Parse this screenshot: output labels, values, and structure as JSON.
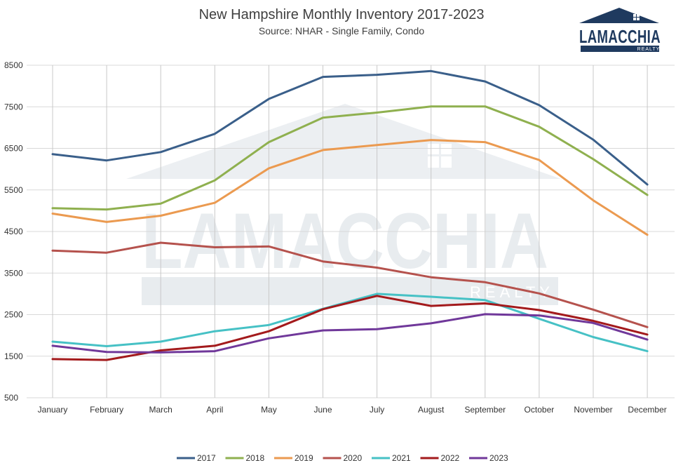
{
  "logo": {
    "name": "LAMACCHIA",
    "sub": "REALTY"
  },
  "chart_data": {
    "type": "line",
    "title": "New Hampshire Monthly Inventory 2017-2023",
    "subtitle": "Source: NHAR - Single Family, Condo",
    "xlabel": "",
    "ylabel": "",
    "categories": [
      "January",
      "February",
      "March",
      "April",
      "May",
      "June",
      "July",
      "August",
      "September",
      "October",
      "November",
      "December"
    ],
    "ylim": [
      500,
      8500
    ],
    "yticks": [
      500,
      1500,
      2500,
      3500,
      4500,
      5500,
      6500,
      7500,
      8500
    ],
    "ytick_labels": [
      "500",
      "1500",
      "2500",
      "3500",
      "4500",
      "5500",
      "6500",
      "7500",
      "8500"
    ],
    "grid": true,
    "legend_position": "bottom",
    "series": [
      {
        "name": "2017",
        "color": "#3a5f8a",
        "values": [
          6360,
          6210,
          6410,
          6850,
          7690,
          8220,
          8270,
          8360,
          8110,
          7540,
          6710,
          5630
        ]
      },
      {
        "name": "2018",
        "color": "#8fb04f",
        "values": [
          5060,
          5030,
          5170,
          5730,
          6650,
          7240,
          7360,
          7510,
          7510,
          7020,
          6240,
          5380
        ]
      },
      {
        "name": "2019",
        "color": "#eb9a50",
        "values": [
          4930,
          4730,
          4880,
          5190,
          6020,
          6460,
          6580,
          6700,
          6650,
          6220,
          5250,
          4420
        ]
      },
      {
        "name": "2020",
        "color": "#b5524d",
        "values": [
          4040,
          3990,
          4230,
          4120,
          4140,
          3780,
          3630,
          3400,
          3280,
          3010,
          2620,
          2200
        ]
      },
      {
        "name": "2021",
        "color": "#46c1c5",
        "values": [
          1850,
          1740,
          1850,
          2100,
          2250,
          2640,
          3000,
          2930,
          2850,
          2400,
          1960,
          1620
        ]
      },
      {
        "name": "2022",
        "color": "#a31a1c",
        "values": [
          1430,
          1410,
          1640,
          1750,
          2100,
          2630,
          2950,
          2710,
          2770,
          2610,
          2350,
          2020
        ]
      },
      {
        "name": "2023",
        "color": "#70389a",
        "values": [
          1750,
          1600,
          1590,
          1620,
          1930,
          2120,
          2150,
          2290,
          2510,
          2480,
          2300,
          1900
        ]
      }
    ]
  }
}
